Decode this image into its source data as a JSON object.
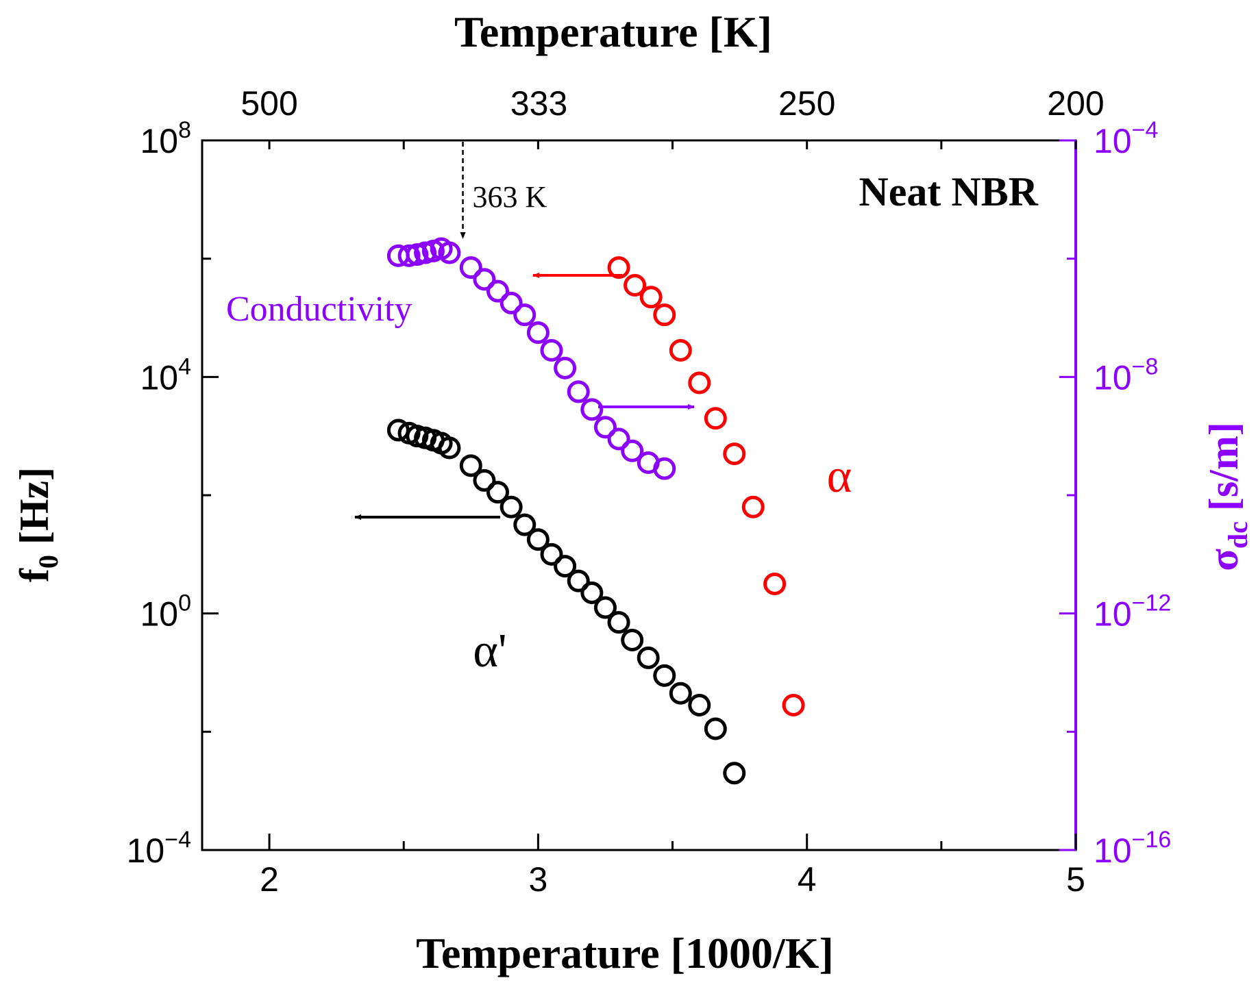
{
  "chart_data": {
    "type": "scatter",
    "title": "Neat NBR",
    "xlabel": "Temperature [1000/K]",
    "xlim": [
      1.75,
      5
    ],
    "x_ticks": [
      2,
      3,
      4,
      5
    ],
    "x_tick_labels": [
      "2",
      "3",
      "4",
      "5"
    ],
    "x2label": "Temperature [K]",
    "x2_ticks_kelvin": [
      500,
      333,
      250,
      200
    ],
    "x2_tick_labels": [
      "500",
      "333",
      "250",
      "200"
    ],
    "y_left": {
      "label_main": "f",
      "label_sub": "0",
      "label_unit": " [Hz]",
      "scale": "log10",
      "log_range": [
        -4,
        8
      ],
      "major_exponents": [
        -4,
        0,
        4,
        8
      ],
      "tick_labels": [
        {
          "base": "10",
          "exp": "−4"
        },
        {
          "base": "10",
          "exp": "0"
        },
        {
          "base": "10",
          "exp": "4"
        },
        {
          "base": "10",
          "exp": "8"
        }
      ],
      "color": "#000000"
    },
    "y_right": {
      "label_main": "σ",
      "label_sub": "dc",
      "label_unit": " [s/m]",
      "scale": "log10",
      "log_range": [
        -16,
        -4
      ],
      "major_exponents": [
        -16,
        -12,
        -8,
        -4
      ],
      "tick_labels": [
        {
          "base": "10",
          "exp": "−16"
        },
        {
          "base": "10",
          "exp": "−12"
        },
        {
          "base": "10",
          "exp": "−8"
        },
        {
          "base": "10",
          "exp": "−4"
        }
      ],
      "color": "#8B00FF"
    },
    "series": [
      {
        "name": "α",
        "label": "α",
        "axis": "left",
        "color": "#FF0000",
        "x": [
          3.3,
          3.36,
          3.42,
          3.47,
          3.53,
          3.6,
          3.66,
          3.73,
          3.8,
          3.88,
          3.95
        ],
        "log_y": [
          5.85,
          5.55,
          5.35,
          5.05,
          4.45,
          3.9,
          3.3,
          2.7,
          1.8,
          0.5,
          -1.55
        ]
      },
      {
        "name": "α'",
        "label": "α'",
        "axis": "left",
        "color": "#000000",
        "x": [
          2.48,
          2.52,
          2.55,
          2.58,
          2.61,
          2.64,
          2.67,
          2.75,
          2.8,
          2.85,
          2.9,
          2.95,
          3.0,
          3.05,
          3.1,
          3.15,
          3.2,
          3.25,
          3.3,
          3.35,
          3.41,
          3.47,
          3.53,
          3.6,
          3.66,
          3.73
        ],
        "log_y": [
          3.1,
          3.05,
          3.0,
          2.97,
          2.93,
          2.88,
          2.8,
          2.5,
          2.25,
          2.05,
          1.8,
          1.5,
          1.25,
          1.0,
          0.8,
          0.55,
          0.35,
          0.1,
          -0.15,
          -0.45,
          -0.75,
          -1.05,
          -1.35,
          -1.55,
          -1.95,
          -2.7
        ]
      },
      {
        "name": "Conductivity",
        "label": "Conductivity",
        "axis": "right",
        "color": "#8B00FF",
        "x": [
          2.48,
          2.52,
          2.55,
          2.58,
          2.61,
          2.64,
          2.67,
          2.75,
          2.8,
          2.85,
          2.9,
          2.95,
          3.0,
          3.05,
          3.1,
          3.15,
          3.2,
          3.25,
          3.3,
          3.35,
          3.41,
          3.47
        ],
        "log_y": [
          -5.95,
          -5.95,
          -5.93,
          -5.9,
          -5.87,
          -5.83,
          -5.9,
          -6.15,
          -6.35,
          -6.55,
          -6.75,
          -6.95,
          -7.25,
          -7.55,
          -7.85,
          -8.25,
          -8.55,
          -8.85,
          -9.05,
          -9.25,
          -9.45,
          -9.55
        ]
      }
    ],
    "annotations": {
      "transition_label": "363 K",
      "transition_x": 2.72
    }
  }
}
